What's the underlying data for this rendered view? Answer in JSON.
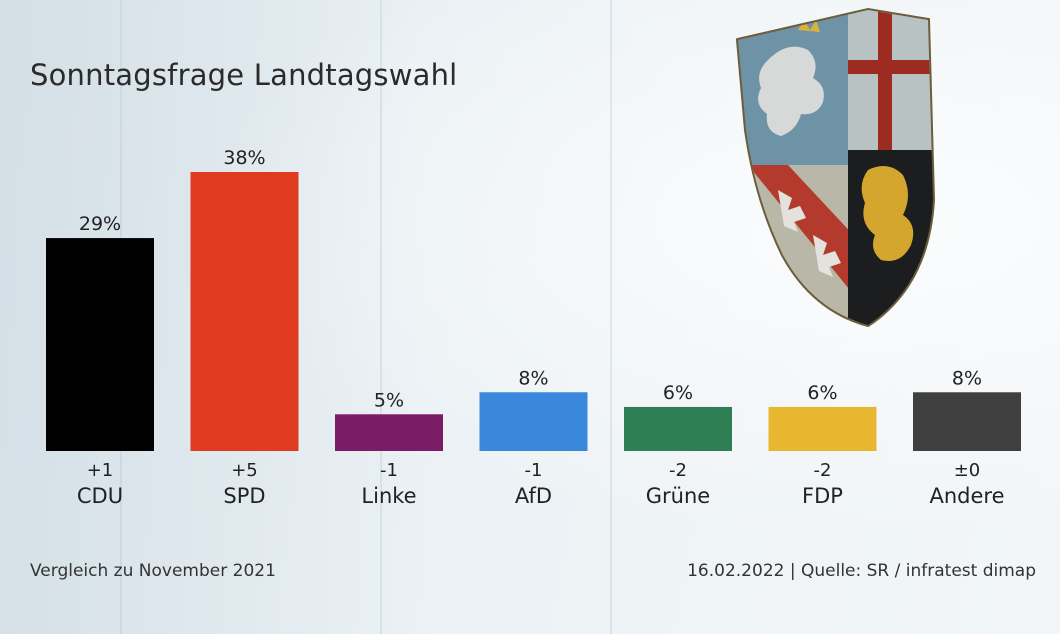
{
  "title": "Sonntagsfrage Landtagswahl",
  "footer": {
    "left": "Vergleich zu November 2021",
    "right": "16.02.2022 | Quelle: SR / infratest dimap"
  },
  "chart_data": {
    "type": "bar",
    "title": "Sonntagsfrage Landtagswahl",
    "categories": [
      "CDU",
      "SPD",
      "Linke",
      "AfD",
      "Grüne",
      "FDP",
      "Andere"
    ],
    "values": [
      29,
      38,
      5,
      8,
      6,
      6,
      8
    ],
    "value_labels": [
      "29%",
      "38%",
      "5%",
      "8%",
      "6%",
      "6%",
      "8%"
    ],
    "change_labels": [
      "+1",
      "+5",
      "-1",
      "-1",
      "-2",
      "-2",
      "±0"
    ],
    "colors": [
      "#000000",
      "#e03a20",
      "#7b1c66",
      "#3a88dc",
      "#2f7f55",
      "#e8b730",
      "#3f3f3f"
    ],
    "ylim": [
      0,
      38
    ],
    "grid": false,
    "legend": "none",
    "xlabel": "",
    "ylabel": ""
  }
}
